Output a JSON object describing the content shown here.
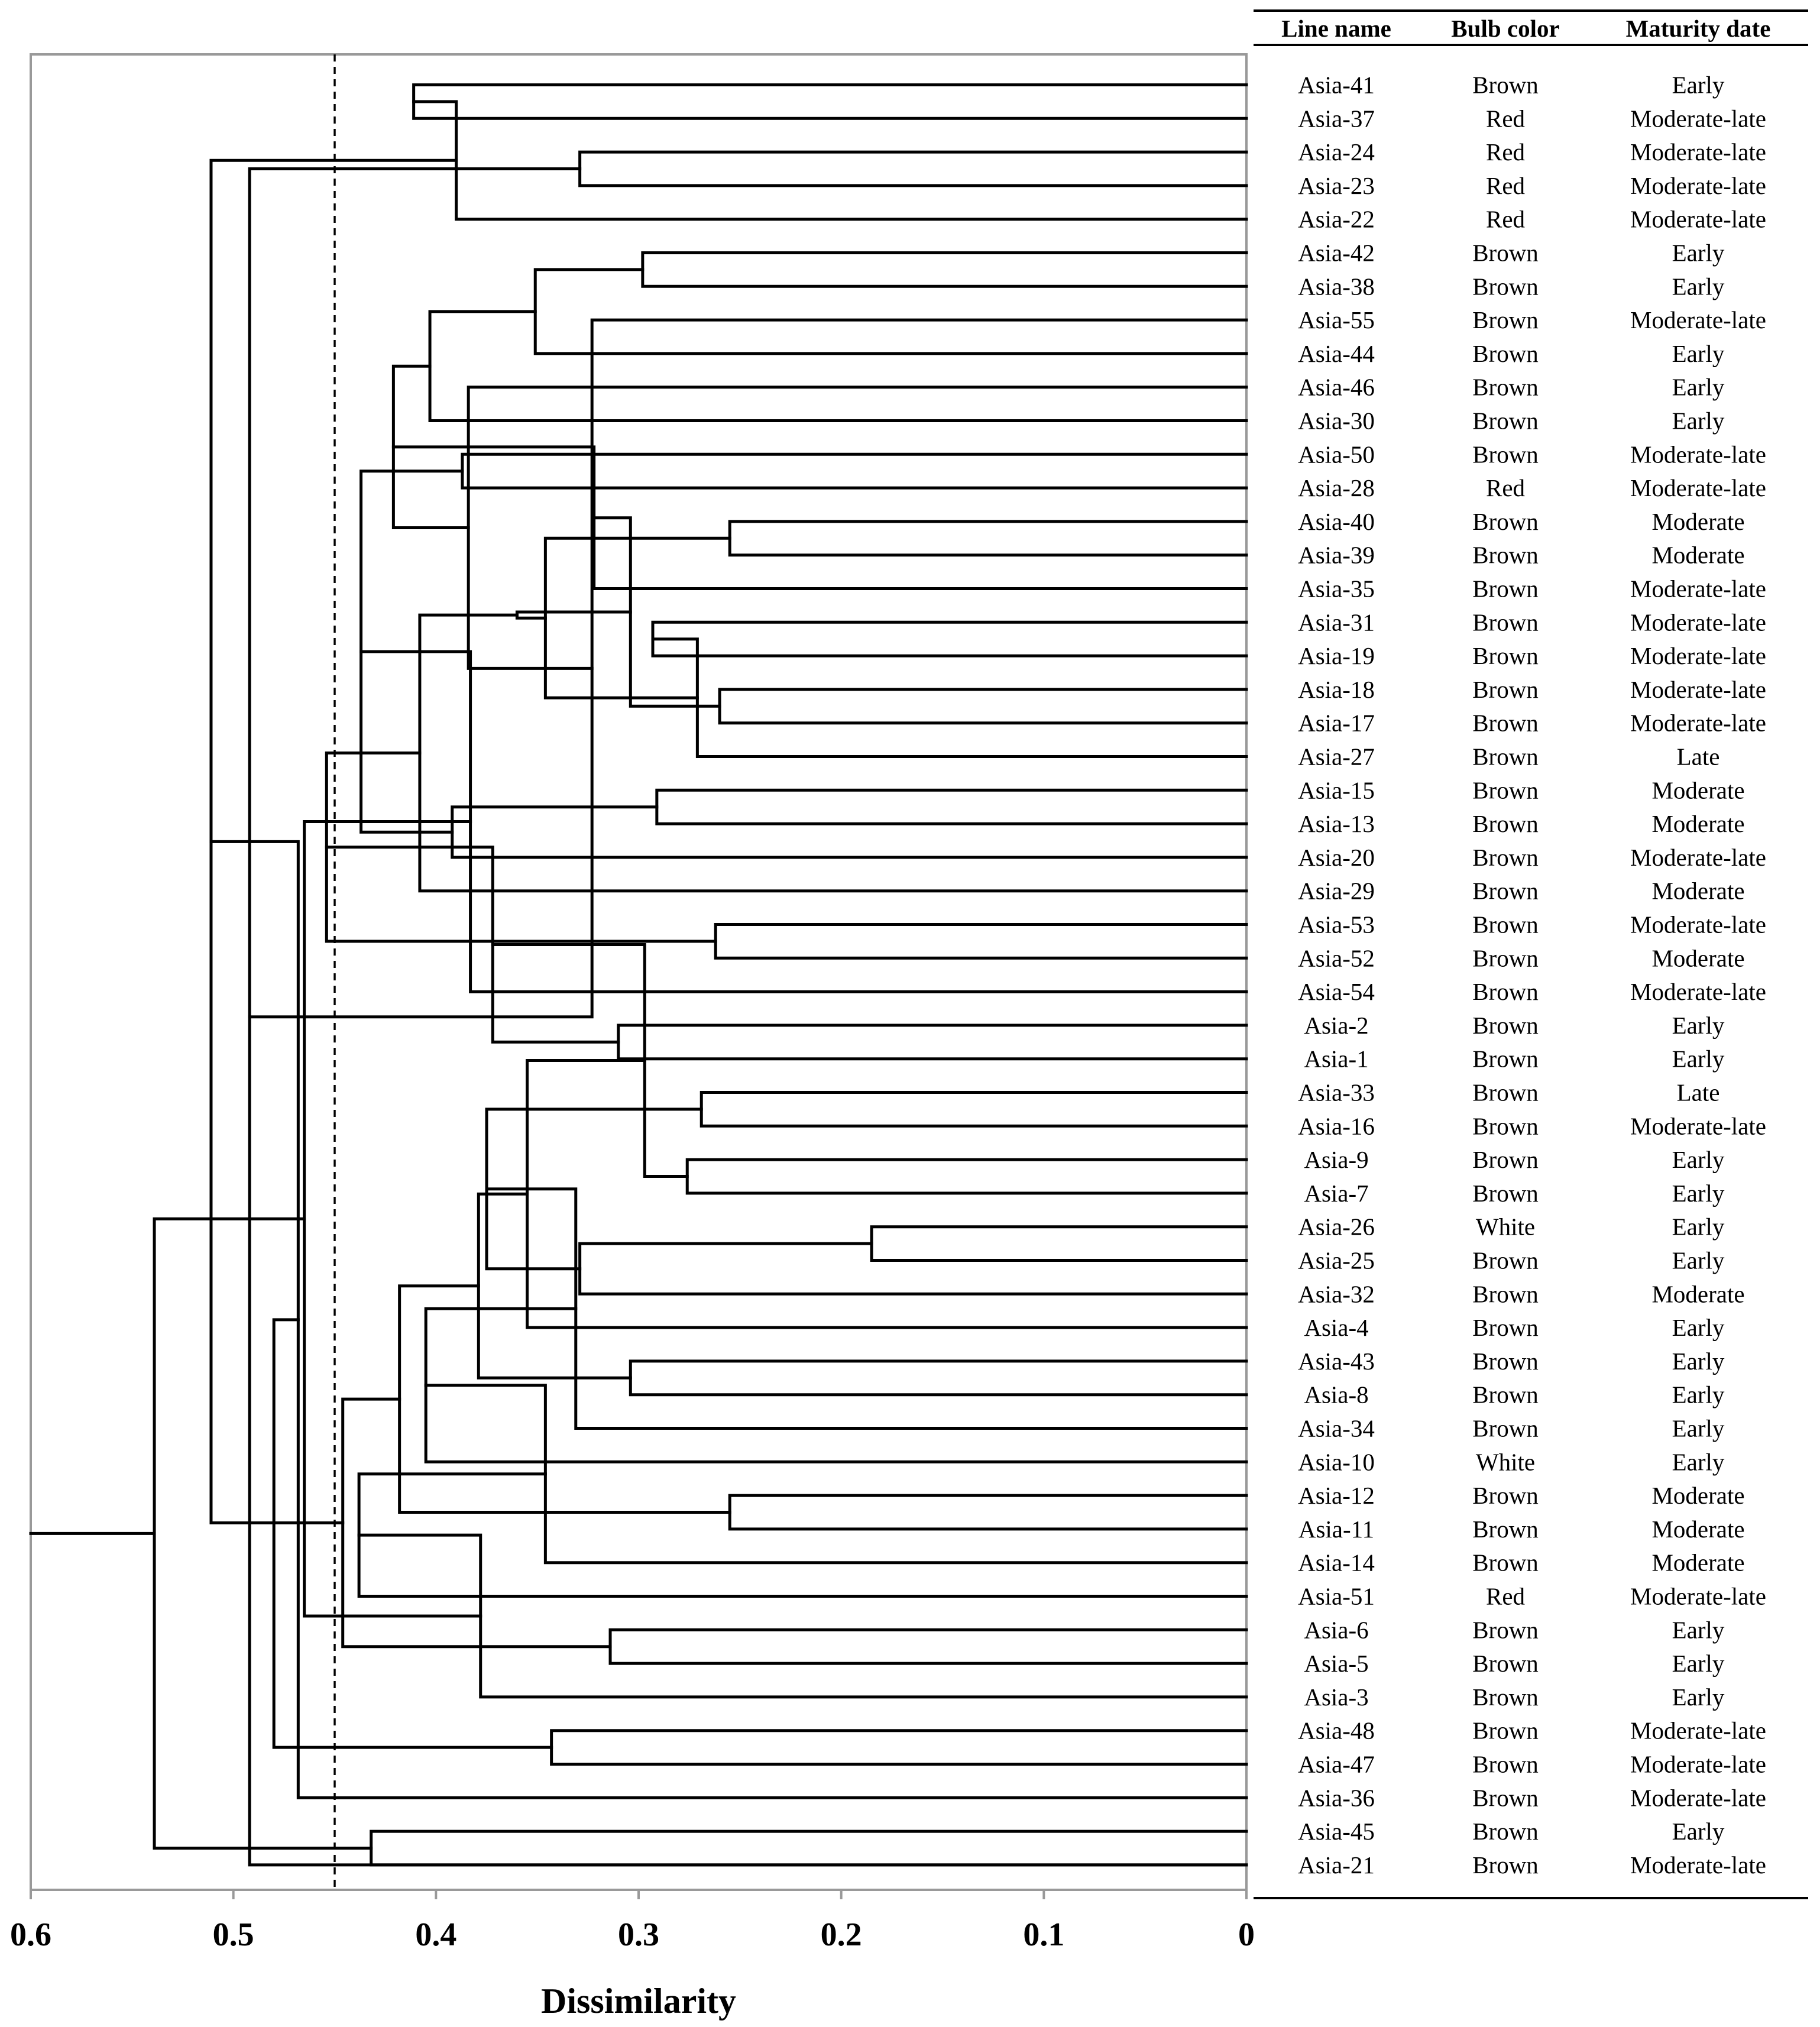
{
  "chart_data": {
    "type": "dendrogram",
    "xlabel": "Dissimilarity",
    "xlim": [
      0.6,
      0
    ],
    "x_ticks": [
      "0.6",
      "0.5",
      "0.4",
      "0.3",
      "0.2",
      "0.1",
      "0"
    ],
    "x_tick_values": [
      0.6,
      0.5,
      0.4,
      0.3,
      0.2,
      0.1,
      0
    ],
    "cutoff": 0.45,
    "columns": [
      "Line name",
      "Bulb color",
      "Maturity date"
    ],
    "rows": [
      [
        "Asia-41",
        "Brown",
        "Early"
      ],
      [
        "Asia-37",
        "Red",
        "Moderate-late"
      ],
      [
        "Asia-24",
        "Red",
        "Moderate-late"
      ],
      [
        "Asia-23",
        "Red",
        "Moderate-late"
      ],
      [
        "Asia-22",
        "Red",
        "Moderate-late"
      ],
      [
        "Asia-42",
        "Brown",
        "Early"
      ],
      [
        "Asia-38",
        "Brown",
        "Early"
      ],
      [
        "Asia-55",
        "Brown",
        "Moderate-late"
      ],
      [
        "Asia-44",
        "Brown",
        "Early"
      ],
      [
        "Asia-46",
        "Brown",
        "Early"
      ],
      [
        "Asia-30",
        "Brown",
        "Early"
      ],
      [
        "Asia-50",
        "Brown",
        "Moderate-late"
      ],
      [
        "Asia-28",
        "Red",
        "Moderate-late"
      ],
      [
        "Asia-40",
        "Brown",
        "Moderate"
      ],
      [
        "Asia-39",
        "Brown",
        "Moderate"
      ],
      [
        "Asia-35",
        "Brown",
        "Moderate-late"
      ],
      [
        "Asia-31",
        "Brown",
        "Moderate-late"
      ],
      [
        "Asia-19",
        "Brown",
        "Moderate-late"
      ],
      [
        "Asia-18",
        "Brown",
        "Moderate-late"
      ],
      [
        "Asia-17",
        "Brown",
        "Moderate-late"
      ],
      [
        "Asia-27",
        "Brown",
        "Late"
      ],
      [
        "Asia-15",
        "Brown",
        "Moderate"
      ],
      [
        "Asia-13",
        "Brown",
        "Moderate"
      ],
      [
        "Asia-20",
        "Brown",
        "Moderate-late"
      ],
      [
        "Asia-29",
        "Brown",
        "Moderate"
      ],
      [
        "Asia-53",
        "Brown",
        "Moderate-late"
      ],
      [
        "Asia-52",
        "Brown",
        "Moderate"
      ],
      [
        "Asia-54",
        "Brown",
        "Moderate-late"
      ],
      [
        "Asia-2",
        "Brown",
        "Early"
      ],
      [
        "Asia-1",
        "Brown",
        "Early"
      ],
      [
        "Asia-33",
        "Brown",
        "Late"
      ],
      [
        "Asia-16",
        "Brown",
        "Moderate-late"
      ],
      [
        "Asia-9",
        "Brown",
        "Early"
      ],
      [
        "Asia-7",
        "Brown",
        "Early"
      ],
      [
        "Asia-26",
        "White",
        "Early"
      ],
      [
        "Asia-25",
        "Brown",
        "Early"
      ],
      [
        "Asia-32",
        "Brown",
        "Moderate"
      ],
      [
        "Asia-4",
        "Brown",
        "Early"
      ],
      [
        "Asia-43",
        "Brown",
        "Early"
      ],
      [
        "Asia-8",
        "Brown",
        "Early"
      ],
      [
        "Asia-34",
        "Brown",
        "Early"
      ],
      [
        "Asia-10",
        "White",
        "Early"
      ],
      [
        "Asia-12",
        "Brown",
        "Moderate"
      ],
      [
        "Asia-11",
        "Brown",
        "Moderate"
      ],
      [
        "Asia-14",
        "Brown",
        "Moderate"
      ],
      [
        "Asia-51",
        "Red",
        "Moderate-late"
      ],
      [
        "Asia-6",
        "Brown",
        "Early"
      ],
      [
        "Asia-5",
        "Brown",
        "Early"
      ],
      [
        "Asia-3",
        "Brown",
        "Early"
      ],
      [
        "Asia-48",
        "Brown",
        "Moderate-late"
      ],
      [
        "Asia-47",
        "Brown",
        "Moderate-late"
      ],
      [
        "Asia-36",
        "Brown",
        "Moderate-late"
      ],
      [
        "Asia-45",
        "Brown",
        "Early"
      ],
      [
        "Asia-21",
        "Brown",
        "Moderate-late"
      ]
    ],
    "merges": [
      [
        0,
        1,
        0.411
      ],
      [
        2,
        3,
        0.329
      ],
      [
        54,
        4,
        0.39
      ],
      [
        53,
        55,
        0.492
      ],
      [
        5,
        6,
        0.298
      ],
      [
        57,
        7,
        0.323
      ],
      [
        58,
        8,
        0.351
      ],
      [
        59,
        9,
        0.384
      ],
      [
        60,
        10,
        0.403
      ],
      [
        11,
        12,
        0.387
      ],
      [
        61,
        62,
        0.421
      ],
      [
        13,
        14,
        0.255
      ],
      [
        64,
        15,
        0.322
      ],
      [
        16,
        17,
        0.293
      ],
      [
        18,
        19,
        0.26
      ],
      [
        67,
        20,
        0.271
      ],
      [
        66,
        68,
        0.304
      ],
      [
        65,
        69,
        0.346
      ],
      [
        21,
        22,
        0.291
      ],
      [
        70,
        71,
        0.36
      ],
      [
        72,
        23,
        0.392
      ],
      [
        73,
        24,
        0.408
      ],
      [
        63,
        74,
        0.437
      ],
      [
        25,
        26,
        0.262
      ],
      [
        76,
        27,
        0.383
      ],
      [
        75,
        77,
        0.454
      ],
      [
        28,
        29,
        0.31
      ],
      [
        30,
        31,
        0.269
      ],
      [
        79,
        80,
        0.372
      ],
      [
        32,
        33,
        0.276
      ],
      [
        34,
        35,
        0.185
      ],
      [
        82,
        83,
        0.297
      ],
      [
        84,
        36,
        0.329
      ],
      [
        85,
        37,
        0.355
      ],
      [
        81,
        86,
        0.375
      ],
      [
        38,
        39,
        0.304
      ],
      [
        88,
        40,
        0.331
      ],
      [
        87,
        89,
        0.379
      ],
      [
        90,
        41,
        0.405
      ],
      [
        42,
        43,
        0.255
      ],
      [
        92,
        44,
        0.346
      ],
      [
        91,
        93,
        0.418
      ],
      [
        94,
        45,
        0.438
      ],
      [
        46,
        47,
        0.314
      ],
      [
        96,
        48,
        0.378
      ],
      [
        95,
        97,
        0.446
      ],
      [
        78,
        98,
        0.465
      ],
      [
        56,
        99,
        0.511
      ],
      [
        49,
        50,
        0.343
      ],
      [
        101,
        51,
        0.468
      ],
      [
        52,
        53,
        0.432
      ],
      [
        102,
        103,
        0.48
      ],
      [
        100,
        104,
        0.539
      ]
    ]
  }
}
